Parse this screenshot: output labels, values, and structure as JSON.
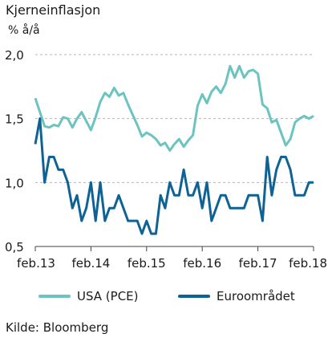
{
  "chart_data": {
    "type": "line",
    "title": "Kjerneinflasjon",
    "ylabel": "% å/å",
    "ylim": [
      0.5,
      2.0
    ],
    "yticks": [
      "2,0",
      "1,5",
      "1,0",
      "0,5"
    ],
    "ytick_values": [
      2.0,
      1.5,
      1.0,
      0.5
    ],
    "x_range": [
      "2013-02",
      "2018-02"
    ],
    "xticks": [
      "feb.13",
      "feb.14",
      "feb.15",
      "feb.16",
      "feb.17",
      "feb.18"
    ],
    "grid": "horizontal dashed",
    "legend_position": "bottom",
    "source": "Kilde: Bloomberg",
    "series": [
      {
        "name": "USA (PCE)",
        "color": "#6cc4c0",
        "x": [
          "2013-02",
          "2013-03",
          "2013-04",
          "2013-05",
          "2013-06",
          "2013-07",
          "2013-08",
          "2013-09",
          "2013-10",
          "2013-11",
          "2013-12",
          "2014-01",
          "2014-02",
          "2014-03",
          "2014-04",
          "2014-05",
          "2014-06",
          "2014-07",
          "2014-08",
          "2014-09",
          "2014-10",
          "2014-11",
          "2014-12",
          "2015-01",
          "2015-02",
          "2015-03",
          "2015-04",
          "2015-05",
          "2015-06",
          "2015-07",
          "2015-08",
          "2015-09",
          "2015-10",
          "2015-11",
          "2015-12",
          "2016-01",
          "2016-02",
          "2016-03",
          "2016-04",
          "2016-05",
          "2016-06",
          "2016-07",
          "2016-08",
          "2016-09",
          "2016-10",
          "2016-11",
          "2016-12",
          "2017-01",
          "2017-02",
          "2017-03",
          "2017-04",
          "2017-05",
          "2017-06",
          "2017-07",
          "2017-08",
          "2017-09",
          "2017-10",
          "2017-11",
          "2017-12",
          "2018-01",
          "2018-02"
        ],
        "values": [
          1.66,
          1.55,
          1.44,
          1.43,
          1.45,
          1.44,
          1.51,
          1.5,
          1.43,
          1.5,
          1.55,
          1.48,
          1.41,
          1.51,
          1.63,
          1.7,
          1.67,
          1.74,
          1.68,
          1.7,
          1.61,
          1.53,
          1.45,
          1.36,
          1.39,
          1.37,
          1.34,
          1.29,
          1.31,
          1.25,
          1.3,
          1.34,
          1.28,
          1.33,
          1.37,
          1.6,
          1.69,
          1.62,
          1.71,
          1.75,
          1.7,
          1.77,
          1.91,
          1.82,
          1.91,
          1.82,
          1.87,
          1.88,
          1.85,
          1.61,
          1.58,
          1.47,
          1.49,
          1.39,
          1.29,
          1.34,
          1.47,
          1.5,
          1.52,
          1.5,
          1.52
        ]
      },
      {
        "name": "Euroområdet",
        "color": "#0f6394",
        "x": [
          "2013-02",
          "2013-03",
          "2013-04",
          "2013-05",
          "2013-06",
          "2013-07",
          "2013-08",
          "2013-09",
          "2013-10",
          "2013-11",
          "2013-12",
          "2014-01",
          "2014-02",
          "2014-03",
          "2014-04",
          "2014-05",
          "2014-06",
          "2014-07",
          "2014-08",
          "2014-09",
          "2014-10",
          "2014-11",
          "2014-12",
          "2015-01",
          "2015-02",
          "2015-03",
          "2015-04",
          "2015-05",
          "2015-06",
          "2015-07",
          "2015-08",
          "2015-09",
          "2015-10",
          "2015-11",
          "2015-12",
          "2016-01",
          "2016-02",
          "2016-03",
          "2016-04",
          "2016-05",
          "2016-06",
          "2016-07",
          "2016-08",
          "2016-09",
          "2016-10",
          "2016-11",
          "2016-12",
          "2017-01",
          "2017-02",
          "2017-03",
          "2017-04",
          "2017-05",
          "2017-06",
          "2017-07",
          "2017-08",
          "2017-09",
          "2017-10",
          "2017-11",
          "2017-12",
          "2018-01",
          "2018-02"
        ],
        "values": [
          1.3,
          1.5,
          1.0,
          1.2,
          1.2,
          1.1,
          1.1,
          1.0,
          0.8,
          0.9,
          0.7,
          0.8,
          1.0,
          0.7,
          1.0,
          0.7,
          0.8,
          0.8,
          0.9,
          0.8,
          0.7,
          0.7,
          0.7,
          0.6,
          0.7,
          0.6,
          0.6,
          0.9,
          0.8,
          1.0,
          0.9,
          0.9,
          1.1,
          0.9,
          0.9,
          1.0,
          0.8,
          1.0,
          0.7,
          0.8,
          0.9,
          0.9,
          0.8,
          0.8,
          0.8,
          0.8,
          0.9,
          0.9,
          0.9,
          0.7,
          1.2,
          0.9,
          1.1,
          1.2,
          1.2,
          1.1,
          0.9,
          0.9,
          0.9,
          1.0,
          1.0
        ]
      }
    ]
  }
}
